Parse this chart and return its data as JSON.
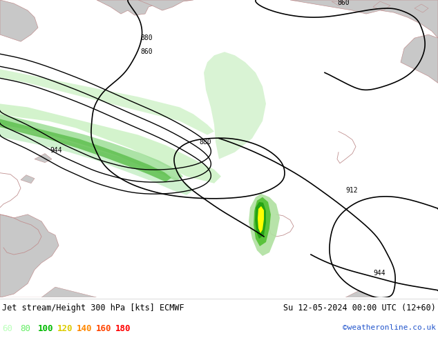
{
  "title_left": "Jet stream/Height 300 hPa [kts] ECMWF",
  "title_right": "Su 12-05-2024 00:00 UTC (12+60)",
  "copyright": "©weatheronline.co.uk",
  "colorbar_values": [
    60,
    80,
    100,
    120,
    140,
    160,
    180
  ],
  "label_60_color": "#bbffbb",
  "label_80_color": "#66ee66",
  "label_100_color": "#00bb00",
  "label_120_color": "#ddcc00",
  "label_140_color": "#ff8800",
  "label_160_color": "#ff4400",
  "label_180_color": "#ff0000",
  "bg_sea": "#d8f0d0",
  "bg_land": "#c8c8c8",
  "border_color": "#c09090",
  "fig_width": 6.34,
  "fig_height": 4.9,
  "dpi": 100,
  "green60_color": "#c8f0c0",
  "green80_color": "#90d888",
  "green100_color": "#50b840",
  "yellow_color": "#ffff00"
}
